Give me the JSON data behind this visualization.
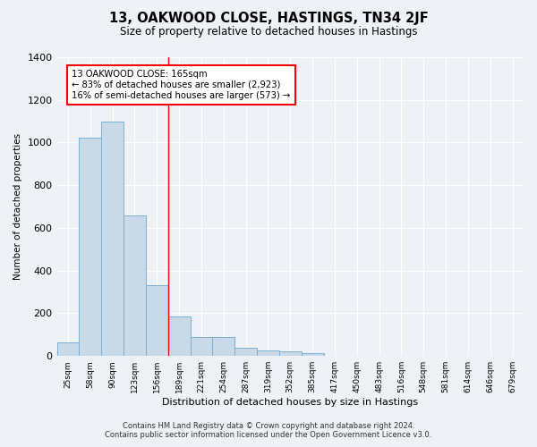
{
  "title": "13, OAKWOOD CLOSE, HASTINGS, TN34 2JF",
  "subtitle": "Size of property relative to detached houses in Hastings",
  "xlabel": "Distribution of detached houses by size in Hastings",
  "ylabel": "Number of detached properties",
  "bar_color": "#c9d9e8",
  "bar_edge_color": "#7bafd4",
  "categories": [
    "25sqm",
    "58sqm",
    "90sqm",
    "123sqm",
    "156sqm",
    "189sqm",
    "221sqm",
    "254sqm",
    "287sqm",
    "319sqm",
    "352sqm",
    "385sqm",
    "417sqm",
    "450sqm",
    "483sqm",
    "516sqm",
    "548sqm",
    "581sqm",
    "614sqm",
    "646sqm",
    "679sqm"
  ],
  "values": [
    65,
    1025,
    1100,
    660,
    330,
    185,
    90,
    90,
    40,
    25,
    20,
    15,
    0,
    0,
    0,
    0,
    0,
    0,
    0,
    0,
    0
  ],
  "ylim": [
    0,
    1400
  ],
  "yticks": [
    0,
    200,
    400,
    600,
    800,
    1000,
    1200,
    1400
  ],
  "annotation_line1": "13 OAKWOOD CLOSE: 165sqm",
  "annotation_line2": "← 83% of detached houses are smaller (2,923)",
  "annotation_line3": "16% of semi-detached houses are larger (573) →",
  "vline_x": 4.5,
  "footer_line1": "Contains HM Land Registry data © Crown copyright and database right 2024.",
  "footer_line2": "Contains public sector information licensed under the Open Government Licence v3.0.",
  "background_color": "#eef2f7",
  "plot_background": "#eef2f7",
  "grid_color": "#ffffff"
}
